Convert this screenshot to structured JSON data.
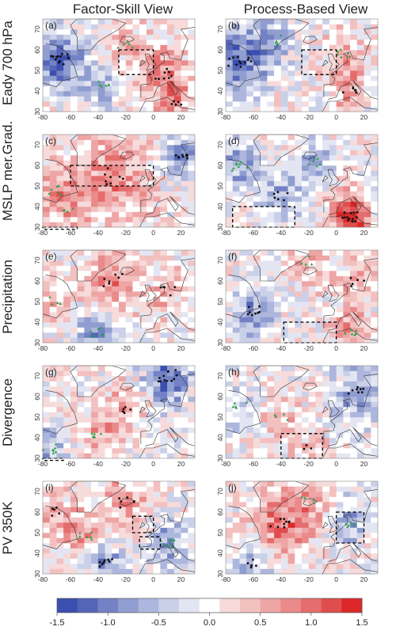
{
  "column_titles": [
    "Factor-Skill View",
    "Process-Based View"
  ],
  "row_labels": [
    "Eady 700 hPa",
    "MSLP mer.Grad.",
    "Precipitation",
    "Divergence",
    "PV 350K"
  ],
  "panel_letters": [
    "(a)",
    "(b)",
    "(c)",
    "(d)",
    "(e)",
    "(f)",
    "(g)",
    "(h)",
    "(i)",
    "(j)"
  ],
  "chart_data": {
    "type": "heatmap",
    "xlim": [
      -80,
      30
    ],
    "ylim": [
      30,
      75
    ],
    "xticks": [
      -80,
      -60,
      -40,
      -20,
      0,
      20
    ],
    "yticks": [
      30,
      40,
      50,
      60,
      70
    ],
    "colorbar": {
      "min": -1.5,
      "max": 1.5,
      "ticks": [
        -1.5,
        -1.0,
        -0.5,
        0.0,
        0.5,
        1.0,
        1.5
      ],
      "tick_labels": [
        "-1.5",
        "-1.0",
        "-0.5",
        "0.0",
        "0.5",
        "1.0",
        "1.5"
      ],
      "colors": [
        "#3b4fb0",
        "#5465b8",
        "#7282c4",
        "#909dd0",
        "#adb6dc",
        "#cad0e8",
        "#e3e6f2",
        "#ffffff",
        "#f7dada",
        "#f3c0c0",
        "#eea5a5",
        "#ea8a8a",
        "#e56d6d",
        "#e04d4d",
        "#dc2828"
      ]
    },
    "panels": [
      {
        "id": "a",
        "hotspots": [
          [
            -68,
            55,
            -1.2,
            10
          ],
          [
            -20,
            62,
            0.5,
            8
          ],
          [
            8,
            48,
            0.8,
            10
          ],
          [
            -35,
            44,
            -0.6,
            8
          ],
          [
            15,
            35,
            0.5,
            8
          ]
        ],
        "boxes": [
          [
            -25,
            48,
            0,
            60
          ]
        ]
      },
      {
        "id": "b",
        "hotspots": [
          [
            -70,
            55,
            -1.2,
            12
          ],
          [
            5,
            58,
            0.6,
            8
          ],
          [
            10,
            40,
            0.6,
            8
          ],
          [
            -45,
            65,
            -0.5,
            8
          ]
        ],
        "boxes": [
          [
            -25,
            48,
            0,
            60
          ]
        ]
      },
      {
        "id": "c",
        "hotspots": [
          [
            -30,
            55,
            0.8,
            16
          ],
          [
            -70,
            48,
            0.6,
            8
          ],
          [
            20,
            65,
            -0.9,
            7
          ],
          [
            -60,
            38,
            0.4,
            8
          ]
        ],
        "boxes": [
          [
            -60,
            50,
            0,
            60
          ],
          [
            -80,
            29,
            -55,
            30
          ]
        ]
      },
      {
        "id": "d",
        "hotspots": [
          [
            10,
            35,
            1.4,
            8
          ],
          [
            -70,
            60,
            -0.8,
            8
          ],
          [
            -40,
            45,
            -0.6,
            8
          ],
          [
            -15,
            62,
            -0.6,
            8
          ]
        ],
        "boxes": [
          [
            -75,
            30,
            -30,
            40
          ]
        ]
      },
      {
        "id": "e",
        "hotspots": [
          [
            -30,
            60,
            0.7,
            12
          ],
          [
            -40,
            35,
            -0.8,
            9
          ],
          [
            10,
            55,
            0.5,
            8
          ],
          [
            -70,
            50,
            0.4,
            8
          ]
        ],
        "boxes": []
      },
      {
        "id": "f",
        "hotspots": [
          [
            -60,
            45,
            -0.8,
            9
          ],
          [
            10,
            35,
            0.6,
            8
          ],
          [
            15,
            60,
            0.5,
            9
          ],
          [
            -20,
            70,
            0.4,
            8
          ]
        ],
        "boxes": [
          [
            -38,
            30,
            0,
            40
          ]
        ]
      },
      {
        "id": "g",
        "hotspots": [
          [
            10,
            70,
            -1.2,
            10
          ],
          [
            -40,
            40,
            0.6,
            8
          ],
          [
            -20,
            55,
            0.5,
            10
          ],
          [
            -75,
            35,
            -0.7,
            8
          ]
        ],
        "boxes": [
          [
            -80,
            29,
            -65,
            30
          ]
        ]
      },
      {
        "id": "h",
        "hotspots": [
          [
            15,
            62,
            -0.8,
            9
          ],
          [
            -40,
            50,
            0.4,
            8
          ],
          [
            -20,
            35,
            0.3,
            8
          ],
          [
            -70,
            55,
            -0.5,
            8
          ]
        ],
        "boxes": [
          [
            -40,
            30,
            -10,
            42
          ]
        ]
      },
      {
        "id": "i",
        "hotspots": [
          [
            -20,
            65,
            0.6,
            10
          ],
          [
            -50,
            48,
            0.7,
            8
          ],
          [
            -35,
            35,
            -0.9,
            8
          ],
          [
            10,
            45,
            -0.8,
            8
          ],
          [
            -70,
            60,
            0.5,
            8
          ]
        ],
        "boxes": [
          [
            -15,
            50,
            0,
            58
          ],
          [
            -10,
            42,
            5,
            48
          ]
        ]
      },
      {
        "id": "j",
        "hotspots": [
          [
            -40,
            55,
            0.9,
            12
          ],
          [
            10,
            55,
            -0.6,
            8
          ],
          [
            -60,
            35,
            -0.6,
            8
          ],
          [
            -20,
            65,
            0.4,
            9
          ]
        ],
        "boxes": [
          [
            0,
            45,
            20,
            60
          ]
        ]
      }
    ]
  }
}
